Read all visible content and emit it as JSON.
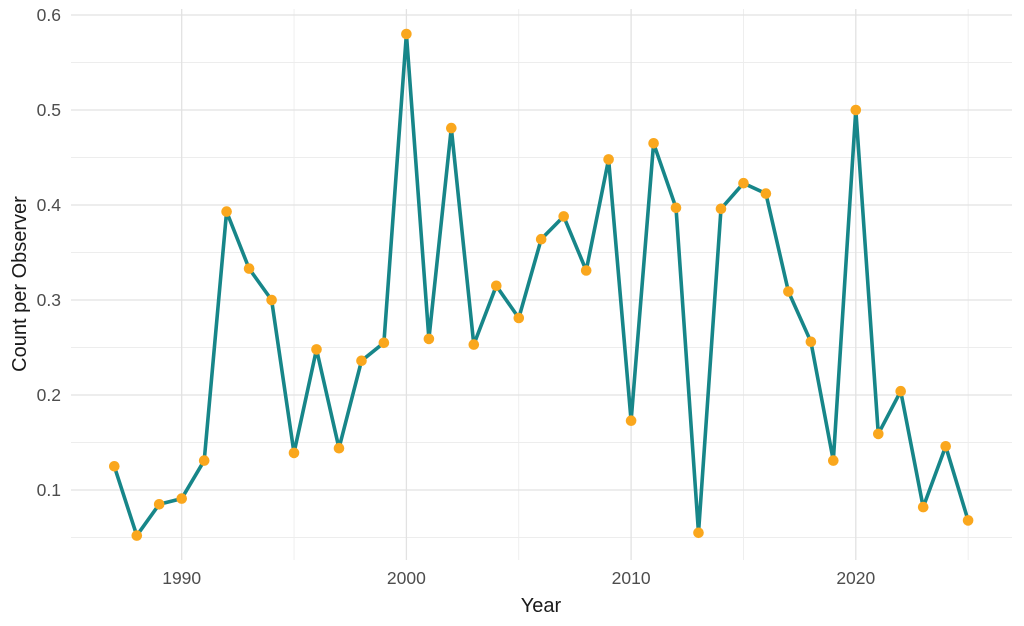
{
  "chart_data": {
    "type": "line",
    "title": "",
    "xlabel": "Year",
    "ylabel": "Count per Observer",
    "x": [
      1987,
      1988,
      1989,
      1990,
      1991,
      1992,
      1993,
      1994,
      1995,
      1996,
      1997,
      1998,
      1999,
      2000,
      2001,
      2002,
      2003,
      2004,
      2005,
      2006,
      2007,
      2008,
      2009,
      2010,
      2011,
      2012,
      2013,
      2014,
      2015,
      2016,
      2017,
      2018,
      2019,
      2020,
      2021,
      2022,
      2023,
      2024,
      2025
    ],
    "series": [
      {
        "name": "Count per Observer",
        "values": [
          0.125,
          0.052,
          0.085,
          0.091,
          0.131,
          0.393,
          0.333,
          0.3,
          0.139,
          0.248,
          0.144,
          0.236,
          0.255,
          0.58,
          0.259,
          0.481,
          0.253,
          0.315,
          0.281,
          0.364,
          0.388,
          0.331,
          0.448,
          0.173,
          0.465,
          0.397,
          0.055,
          0.396,
          0.423,
          0.412,
          0.309,
          0.256,
          0.131,
          0.5,
          0.159,
          0.204,
          0.082,
          0.146,
          0.068
        ]
      }
    ],
    "xlim": [
      1985.1,
      2026.9
    ],
    "ylim": [
      0.026,
      0.606
    ],
    "x_ticks_major": [
      1990,
      2000,
      2010,
      2020
    ],
    "x_ticks_minor": [
      1995,
      2005,
      2015,
      2025
    ],
    "y_ticks_major": [
      0.1,
      0.2,
      0.3,
      0.4,
      0.5,
      0.6
    ],
    "y_ticks_minor": [
      0.05,
      0.15,
      0.25,
      0.35,
      0.45,
      0.55
    ],
    "grid": true,
    "legend": null,
    "colors": {
      "line": "#178689",
      "point": "#faa71d",
      "grid_major": "#e2e2e2",
      "grid_minor": "#ededed",
      "tick_label": "#4d4d4d",
      "axis_title": "#1a1a1a",
      "background": "#ffffff"
    }
  }
}
